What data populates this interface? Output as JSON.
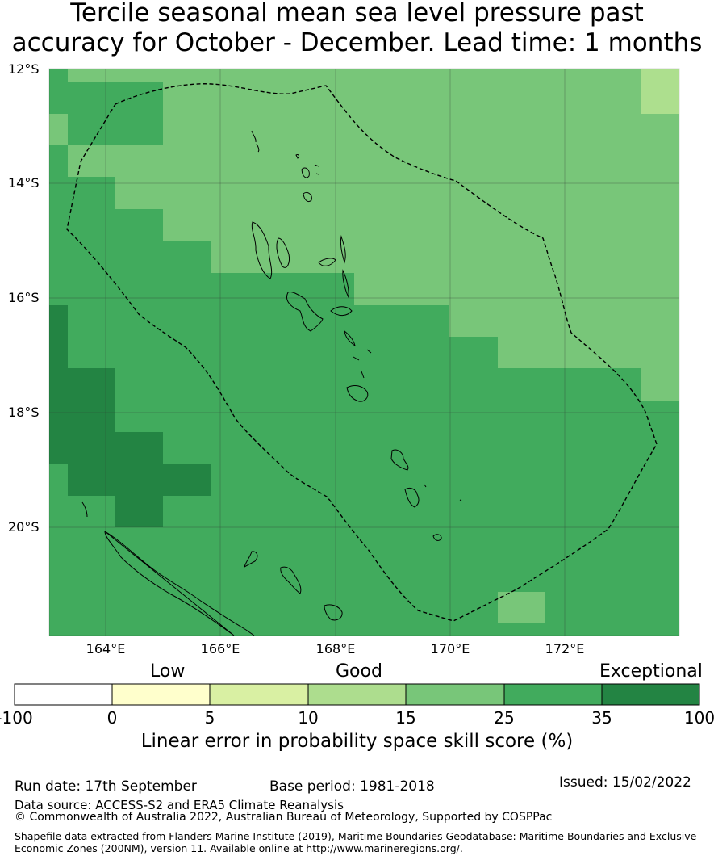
{
  "title": {
    "line1": "Tercile seasonal mean sea level pressure past",
    "line2": "accuracy for October - December. Lead time: 1 months"
  },
  "map": {
    "lat_labels": [
      "12°S",
      "14°S",
      "16°S",
      "18°S",
      "20°S"
    ],
    "lon_labels": [
      "164°E",
      "166°E",
      "168°E",
      "170°E",
      "172°E"
    ],
    "colors": {
      "c10_15": "#addf8e",
      "c15_25": "#78c679",
      "c25_35": "#41ab5d",
      "c35_100": "#238443"
    }
  },
  "colorbar": {
    "categories": [
      "Low",
      "Good",
      "Exceptional"
    ],
    "ticks": [
      "-100",
      "0",
      "5",
      "10",
      "15",
      "25",
      "35",
      "100"
    ],
    "colors": [
      "#ffffff",
      "#ffffcc",
      "#d9f0a3",
      "#addd8e",
      "#78c679",
      "#41ab5d",
      "#238443"
    ],
    "label": "Linear error in probability space skill score (%)"
  },
  "footer": {
    "run_date": "Run date: 17th September",
    "base_period": "Base period: 1981-2018",
    "issued": "Issued: 15/02/2022",
    "data_source": "Data source: ACCESS-S2 and ERA5 Climate Reanalysis",
    "copyright": "© Commonwealth of Australia 2022, Australian Bureau of Meteorology, Supported by COSPPac",
    "shapefile_line1": "Shapefile data extracted from Flanders Marine Institute (2019), Maritime Boundaries Geodatabase: Maritime Boundaries and Exclusive",
    "shapefile_line2": "Economic Zones (200NM), version 11. Available online at http://www.marineregions.org/."
  }
}
